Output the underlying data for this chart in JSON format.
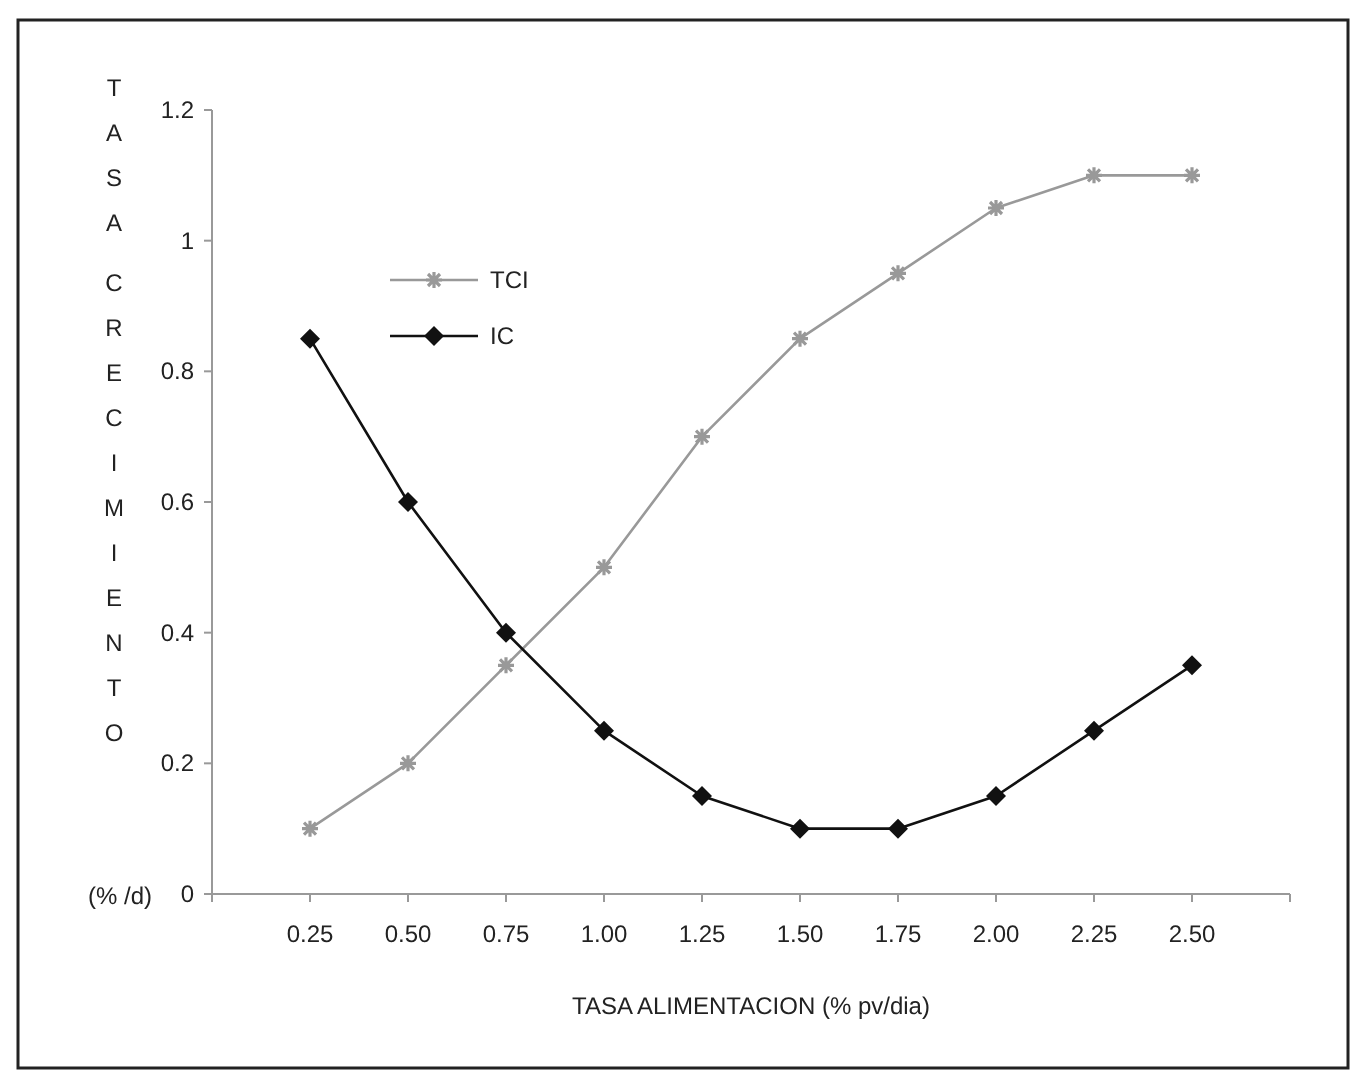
{
  "chart_data": {
    "type": "line",
    "xlabel": "TASA ALIMENTACION (% pv/dia)",
    "ylabel": "TASA CRECIMIENTO",
    "annotations": [
      "(% /d)"
    ],
    "x": [
      0.25,
      0.5,
      0.75,
      1.0,
      1.25,
      1.5,
      1.75,
      2.0,
      2.25,
      2.5
    ],
    "xlim": [
      0,
      2.75
    ],
    "xticks": [
      {
        "value": 0,
        "label": null
      },
      {
        "value": 0.25,
        "label": "0.25"
      },
      {
        "value": 0.5,
        "label": "0.50"
      },
      {
        "value": 0.75,
        "label": "0.75"
      },
      {
        "value": 1,
        "label": "1.00"
      },
      {
        "value": 1.25,
        "label": "1.25"
      },
      {
        "value": 1.5,
        "label": "1.50"
      },
      {
        "value": 1.75,
        "label": "1.75"
      },
      {
        "value": 2,
        "label": "2.00"
      },
      {
        "value": 2.25,
        "label": "2.25"
      },
      {
        "value": 2.5,
        "label": "2.50"
      },
      {
        "value": 2.75,
        "label": null
      }
    ],
    "ylim": [
      0,
      1.2
    ],
    "yticks": [
      0,
      0.2,
      0.4,
      0.6,
      0.8,
      1,
      1.2
    ],
    "series": [
      {
        "name": "TCI",
        "color": "#999999",
        "marker": "cross",
        "values": [
          0.1,
          0.2,
          0.35,
          0.5,
          0.7,
          0.85,
          0.95,
          1.05,
          1.1,
          1.1
        ]
      },
      {
        "name": "IC",
        "color": "#111111",
        "marker": "diamond",
        "values": [
          0.85,
          0.6,
          0.4,
          0.25,
          0.15,
          0.1,
          0.1,
          0.15,
          0.25,
          0.35
        ]
      }
    ],
    "legend": "top left",
    "grid": false,
    "line_style": "solid"
  }
}
